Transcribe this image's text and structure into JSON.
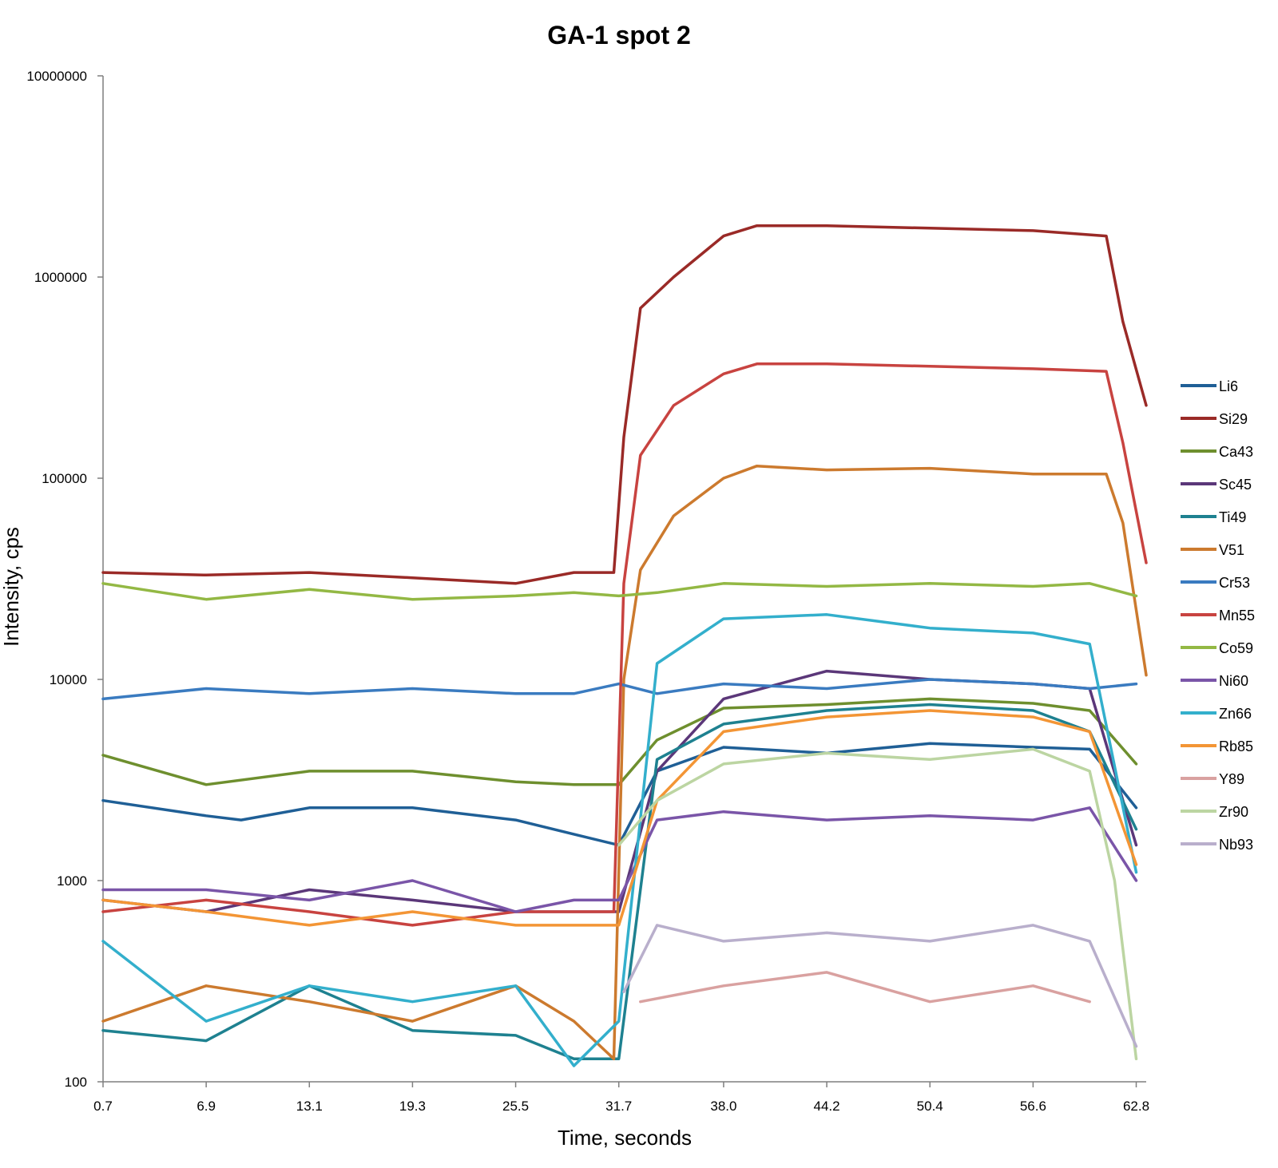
{
  "chart_data": {
    "type": "line",
    "title": "GA-1 spot 2",
    "xlabel": "Time, seconds",
    "ylabel": "Intensity, cps",
    "y_scale": "log",
    "ylim": [
      100,
      10000000
    ],
    "xlim": [
      0.7,
      63.4
    ],
    "grid": false,
    "legend_position": "right",
    "x_tick_labels": [
      "0.7",
      "6.9",
      "13.1",
      "19.3",
      "25.5",
      "31.7",
      "38.0",
      "44.2",
      "50.4",
      "56.6",
      "62.8"
    ],
    "y_tick_labels": [
      "100",
      "1000",
      "10000",
      "100000",
      "1000000",
      "10000000"
    ],
    "series": [
      {
        "name": "Li6",
        "color": "#1f5f96",
        "x": [
          0.7,
          6.9,
          9.0,
          13.1,
          19.3,
          25.5,
          29.0,
          31.7,
          34.0,
          38.0,
          44.2,
          50.4,
          56.6,
          60.0,
          62.8
        ],
        "y": [
          2500,
          2100,
          2000,
          2300,
          2300,
          2000,
          1700,
          1500,
          3500,
          4600,
          4300,
          4800,
          4600,
          4500,
          2300
        ]
      },
      {
        "name": "Si29",
        "color": "#9a2a27",
        "x": [
          0.7,
          6.9,
          13.1,
          19.3,
          25.5,
          29.0,
          31.4,
          32.0,
          33.0,
          35.0,
          38.0,
          40.0,
          44.2,
          50.4,
          56.6,
          61.0,
          62.0,
          63.4
        ],
        "y": [
          34000,
          33000,
          34000,
          32000,
          30000,
          34000,
          34000,
          160000,
          700000,
          1000000,
          1600000,
          1800000,
          1800000,
          1750000,
          1700000,
          1600000,
          600000,
          230000
        ]
      },
      {
        "name": "Ca43",
        "color": "#6e8f2e",
        "x": [
          0.7,
          6.9,
          13.1,
          19.3,
          25.5,
          29.0,
          31.7,
          34.0,
          38.0,
          44.2,
          50.4,
          56.6,
          60.0,
          62.8
        ],
        "y": [
          4200,
          3000,
          3500,
          3500,
          3100,
          3000,
          3000,
          5000,
          7200,
          7500,
          8000,
          7600,
          7000,
          3800
        ]
      },
      {
        "name": "Sc45",
        "color": "#5b3779",
        "x": [
          0.7,
          6.9,
          13.1,
          19.3,
          25.5,
          29.0,
          31.7,
          34.0,
          38.0,
          44.2,
          50.4,
          56.6,
          60.0,
          62.8
        ],
        "y": [
          800,
          700,
          900,
          800,
          700,
          700,
          700,
          3500,
          8000,
          11000,
          10000,
          9500,
          9000,
          1500
        ]
      },
      {
        "name": "Ti49",
        "color": "#1e8190",
        "x": [
          0.7,
          6.9,
          13.1,
          19.3,
          25.5,
          29.0,
          31.7,
          34.0,
          38.0,
          44.2,
          50.4,
          56.6,
          60.0,
          62.8
        ],
        "y": [
          180,
          160,
          300,
          180,
          170,
          130,
          130,
          4000,
          6000,
          7000,
          7500,
          7000,
          5500,
          1800
        ]
      },
      {
        "name": "V51",
        "color": "#cc7a2e",
        "x": [
          0.7,
          6.9,
          13.1,
          19.3,
          25.5,
          29.0,
          31.4,
          32.0,
          33.0,
          35.0,
          38.0,
          40.0,
          44.2,
          50.4,
          56.6,
          61.0,
          62.0,
          63.4
        ],
        "y": [
          200,
          300,
          250,
          200,
          300,
          200,
          130,
          10000,
          35000,
          65000,
          100000,
          115000,
          110000,
          112000,
          105000,
          105000,
          60000,
          10500
        ]
      },
      {
        "name": "Cr53",
        "color": "#3a7bc0",
        "x": [
          0.7,
          6.9,
          13.1,
          19.3,
          25.5,
          29.0,
          31.7,
          34.0,
          38.0,
          44.2,
          50.4,
          56.6,
          60.0,
          62.8
        ],
        "y": [
          8000,
          9000,
          8500,
          9000,
          8500,
          8500,
          9500,
          8500,
          9500,
          9000,
          10000,
          9500,
          9000,
          9500
        ]
      },
      {
        "name": "Mn55",
        "color": "#c84340",
        "x": [
          0.7,
          6.9,
          13.1,
          19.3,
          25.5,
          29.0,
          31.4,
          32.0,
          33.0,
          35.0,
          38.0,
          40.0,
          44.2,
          50.4,
          56.6,
          61.0,
          62.0,
          63.4
        ],
        "y": [
          700,
          800,
          700,
          600,
          700,
          700,
          700,
          30000,
          130000,
          230000,
          330000,
          370000,
          370000,
          360000,
          350000,
          340000,
          150000,
          38000
        ]
      },
      {
        "name": "Co59",
        "color": "#93b844",
        "x": [
          0.7,
          6.9,
          13.1,
          19.3,
          25.5,
          29.0,
          31.7,
          34.0,
          38.0,
          44.2,
          50.4,
          56.6,
          60.0,
          62.8
        ],
        "y": [
          30000,
          25000,
          28000,
          25000,
          26000,
          27000,
          26000,
          27000,
          30000,
          29000,
          30000,
          29000,
          30000,
          26000
        ]
      },
      {
        "name": "Ni60",
        "color": "#7a55a8",
        "x": [
          0.7,
          6.9,
          13.1,
          19.3,
          25.5,
          29.0,
          31.7,
          34.0,
          38.0,
          44.2,
          50.4,
          56.6,
          60.0,
          62.8
        ],
        "y": [
          900,
          900,
          800,
          1000,
          700,
          800,
          800,
          2000,
          2200,
          2000,
          2100,
          2000,
          2300,
          1000
        ]
      },
      {
        "name": "Zn66",
        "color": "#33afcc",
        "x": [
          0.7,
          6.9,
          13.1,
          19.3,
          25.5,
          29.0,
          31.7,
          34.0,
          38.0,
          44.2,
          50.4,
          56.6,
          60.0,
          62.8
        ],
        "y": [
          500,
          200,
          300,
          250,
          300,
          120,
          200,
          12000,
          20000,
          21000,
          18000,
          17000,
          15000,
          1100
        ]
      },
      {
        "name": "Rb85",
        "color": "#f39535",
        "x": [
          0.7,
          6.9,
          13.1,
          19.3,
          25.5,
          29.0,
          31.7,
          34.0,
          38.0,
          44.2,
          50.4,
          56.6,
          60.0,
          62.8
        ],
        "y": [
          800,
          700,
          600,
          700,
          600,
          600,
          600,
          2500,
          5500,
          6500,
          7000,
          6500,
          5500,
          1200
        ]
      },
      {
        "name": "Y89",
        "color": "#d9a1a0",
        "x": [
          33.0,
          38.0,
          44.2,
          50.4,
          56.6,
          60.0
        ],
        "y": [
          250,
          300,
          350,
          250,
          300,
          250
        ]
      },
      {
        "name": "Zr90",
        "color": "#bcd5a2",
        "x": [
          31.7,
          34.0,
          38.0,
          44.2,
          50.4,
          56.6,
          60.0,
          61.5,
          62.8
        ],
        "y": [
          1500,
          2500,
          3800,
          4300,
          4000,
          4500,
          3500,
          1000,
          130
        ]
      },
      {
        "name": "Nb93",
        "color": "#b9afcc",
        "x": [
          32.0,
          34.0,
          38.0,
          44.2,
          50.4,
          56.6,
          60.0,
          62.8
        ],
        "y": [
          280,
          600,
          500,
          550,
          500,
          600,
          500,
          150
        ]
      }
    ]
  }
}
